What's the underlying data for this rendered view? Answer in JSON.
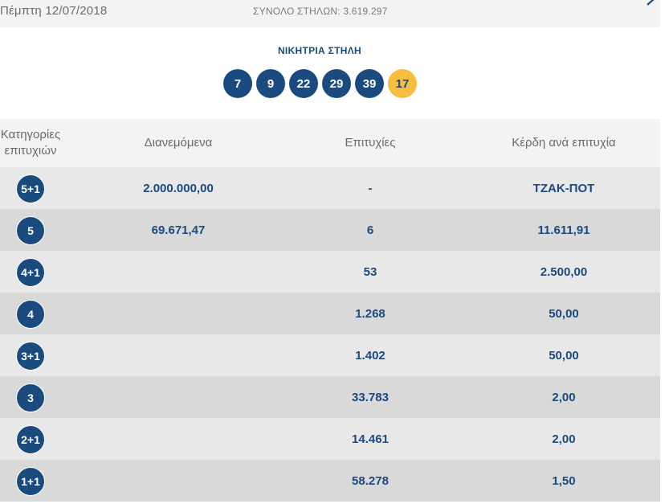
{
  "header": {
    "draw_date": "Πέμπτη 12/07/2018",
    "total_columns": "ΣΥΝΟΛΟ ΣΤΗΛΩΝ: 3.619.297"
  },
  "winning": {
    "title": "ΝΙΚΗΤΡΙΑ ΣΤΗΛΗ",
    "numbers": [
      "7",
      "9",
      "22",
      "29",
      "39"
    ],
    "joker": "17"
  },
  "table": {
    "headers": {
      "category_line1": "Κατηγορίες",
      "category_line2": "επιτυχιών",
      "distributed": "Διανεμόμενα",
      "winners": "Επιτυχίες",
      "prize": "Κέρδη ανά επιτυχία"
    },
    "rows": [
      {
        "category": "5+1",
        "distributed": "2.000.000,00",
        "winners": "-",
        "prize": "ΤΖΑΚ-ΠΟΤ"
      },
      {
        "category": "5",
        "distributed": "69.671,47",
        "winners": "6",
        "prize": "11.611,91"
      },
      {
        "category": "4+1",
        "distributed": "",
        "winners": "53",
        "prize": "2.500,00"
      },
      {
        "category": "4",
        "distributed": "",
        "winners": "1.268",
        "prize": "50,00"
      },
      {
        "category": "3+1",
        "distributed": "",
        "winners": "1.402",
        "prize": "50,00"
      },
      {
        "category": "3",
        "distributed": "",
        "winners": "33.783",
        "prize": "2,00"
      },
      {
        "category": "2+1",
        "distributed": "",
        "winners": "14.461",
        "prize": "2,00"
      },
      {
        "category": "1+1",
        "distributed": "",
        "winners": "58.278",
        "prize": "1,50"
      }
    ]
  },
  "colors": {
    "primary": "#1b4a7f",
    "joker": "#f6bd3f",
    "row_light": "#e8e8e9",
    "row_dark": "#d9d9da",
    "header_bg": "#f3f3f4"
  },
  "icons": {
    "next": "chevron-right-icon"
  }
}
